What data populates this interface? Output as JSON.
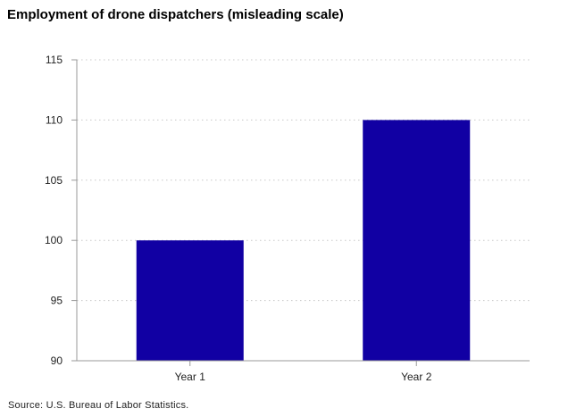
{
  "chart_data": {
    "type": "bar",
    "title": "Employment of drone dispatchers (misleading scale)",
    "categories": [
      "Year 1",
      "Year 2"
    ],
    "values": [
      100,
      110
    ],
    "xlabel": "",
    "ylabel": "",
    "ylim": [
      90,
      115
    ],
    "yticks": [
      90,
      95,
      100,
      105,
      110,
      115
    ],
    "grid": true,
    "bar_color": "#1100a3",
    "grid_color": "#c8c8c8",
    "axis_color": "#999999"
  },
  "source": "Source: U.S. Bureau of Labor Statistics."
}
